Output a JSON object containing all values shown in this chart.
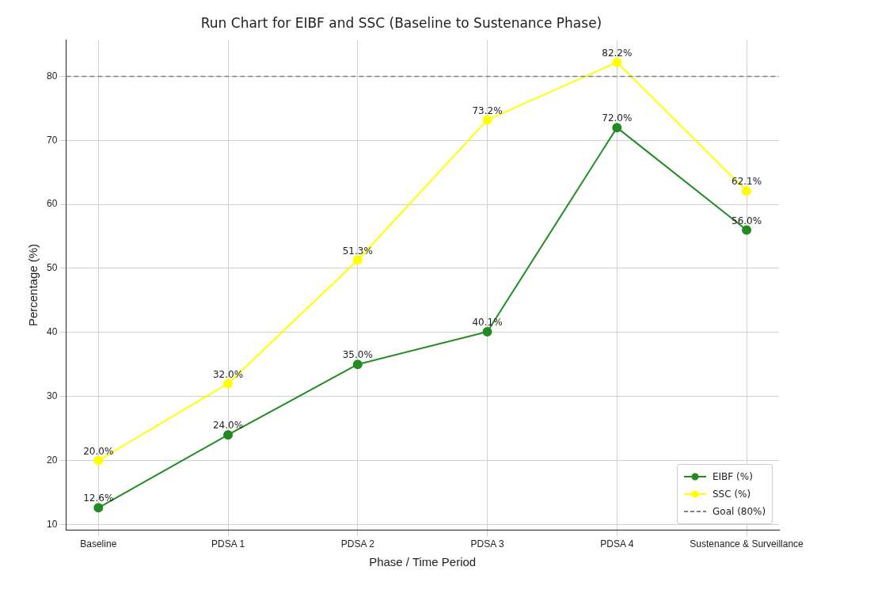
{
  "chart_data": {
    "type": "line",
    "title": "Run Chart for EIBF and SSC (Baseline to Sustenance Phase)",
    "xlabel": "Phase / Time Period",
    "ylabel": "Percentage (%)",
    "categories": [
      "Baseline",
      "PDSA 1",
      "PDSA 2",
      "PDSA 3",
      "PDSA 4",
      "Sustenance & Surveillance"
    ],
    "series": [
      {
        "name": "EIBF (%)",
        "color": "#228b22",
        "values": [
          12.6,
          24.0,
          35.0,
          40.1,
          72.0,
          56.0
        ],
        "value_labels": [
          "12.6%",
          "24.0%",
          "35.0%",
          "40.1%",
          "72.0%",
          "56.0%"
        ]
      },
      {
        "name": "SSC (%)",
        "color": "#ffff00",
        "values": [
          20.0,
          32.0,
          51.3,
          73.2,
          82.2,
          62.1
        ],
        "value_labels": [
          "20.0%",
          "32.0%",
          "51.3%",
          "73.2%",
          "82.2%",
          "62.1%"
        ]
      }
    ],
    "ref_lines": [
      {
        "axis": "y",
        "value": 80,
        "label": "Goal (80%)",
        "color": "#808080",
        "line_style": "dashed"
      }
    ],
    "ylim": [
      9.1,
      85.7
    ],
    "yticks": [
      10,
      20,
      30,
      40,
      50,
      60,
      70,
      80
    ],
    "grid": true,
    "legend": "bottom right",
    "marker": "circle",
    "line_style": "solid"
  }
}
